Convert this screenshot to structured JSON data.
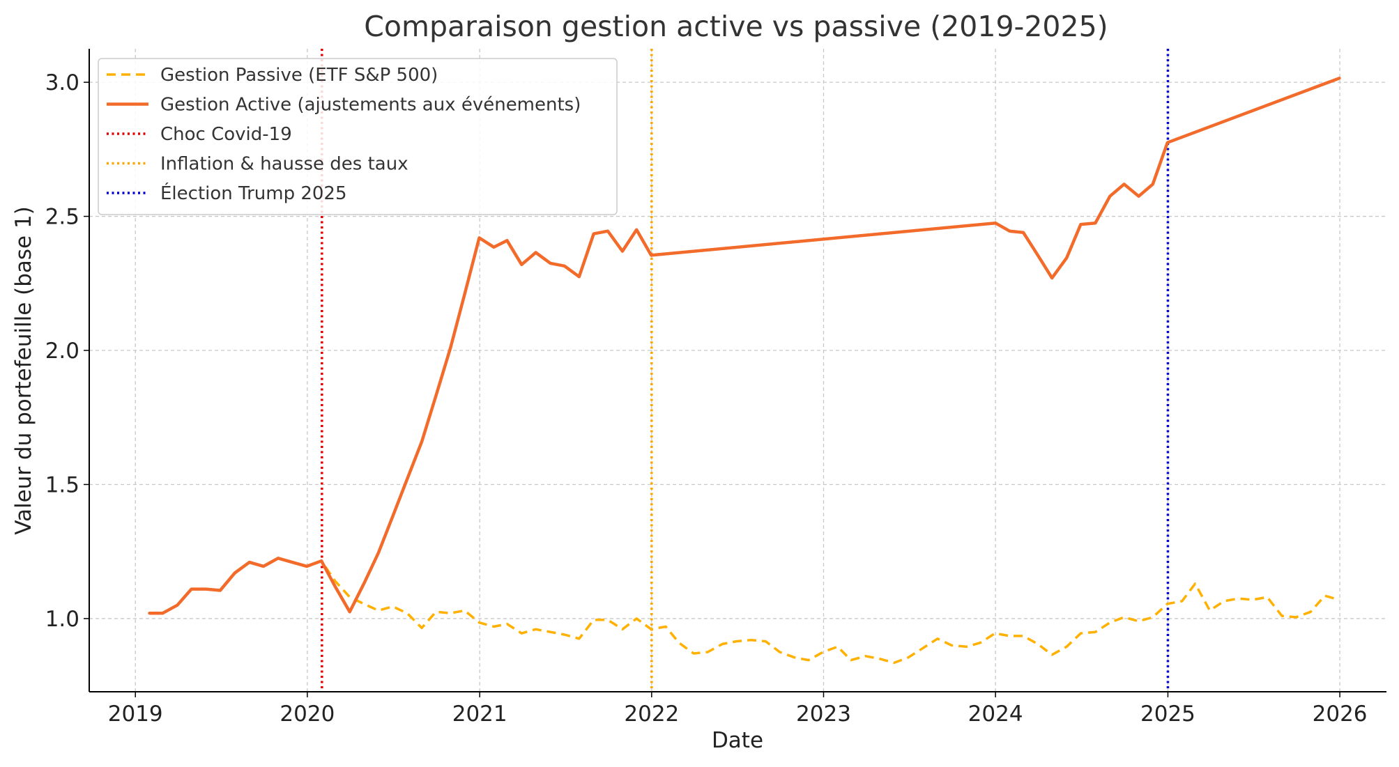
{
  "chart_data": {
    "type": "line",
    "title": "Comparaison gestion active vs passive (2019-2025)",
    "xlabel": "Date",
    "ylabel": "Valeur du portefeuille (base 1)",
    "xlim": [
      "2018-09-25",
      "2026-04-10"
    ],
    "ylim": [
      0.727,
      3.125
    ],
    "x_ticks": [
      "2019",
      "2020",
      "2021",
      "2022",
      "2023",
      "2024",
      "2025",
      "2026"
    ],
    "y_ticks": [
      "1.0",
      "1.5",
      "2.0",
      "2.5",
      "3.0"
    ],
    "grid": true,
    "legend_position": "top-left",
    "series": [
      {
        "name": "Gestion Passive (ETF S&P 500)",
        "style": "dashed",
        "color": "#FFB000",
        "points": [
          [
            "2019-01-31",
            1.02
          ],
          [
            "2019-02-28",
            1.02
          ],
          [
            "2019-03-31",
            1.05
          ],
          [
            "2019-04-30",
            1.11
          ],
          [
            "2019-05-31",
            1.11
          ],
          [
            "2019-06-30",
            1.105
          ],
          [
            "2019-07-31",
            1.17
          ],
          [
            "2019-08-31",
            1.21
          ],
          [
            "2019-09-30",
            1.195
          ],
          [
            "2019-10-31",
            1.225
          ],
          [
            "2019-11-30",
            1.21
          ],
          [
            "2019-12-31",
            1.195
          ],
          [
            "2020-01-31",
            1.215
          ],
          [
            "2020-02-29",
            1.14
          ],
          [
            "2020-03-31",
            1.08
          ],
          [
            "2020-04-30",
            1.055
          ],
          [
            "2020-05-31",
            1.03
          ],
          [
            "2020-06-30",
            1.045
          ],
          [
            "2020-07-31",
            1.02
          ],
          [
            "2020-08-31",
            0.965
          ],
          [
            "2020-09-30",
            1.025
          ],
          [
            "2020-10-31",
            1.02
          ],
          [
            "2020-11-30",
            1.03
          ],
          [
            "2020-12-31",
            0.985
          ],
          [
            "2021-01-31",
            0.97
          ],
          [
            "2021-02-28",
            0.98
          ],
          [
            "2021-03-31",
            0.945
          ],
          [
            "2021-04-30",
            0.96
          ],
          [
            "2021-05-31",
            0.95
          ],
          [
            "2021-06-30",
            0.94
          ],
          [
            "2021-07-31",
            0.925
          ],
          [
            "2021-08-31",
            0.995
          ],
          [
            "2021-09-30",
            0.995
          ],
          [
            "2021-10-31",
            0.96
          ],
          [
            "2021-11-30",
            1.0
          ],
          [
            "2021-12-31",
            0.96
          ],
          [
            "2022-01-31",
            0.97
          ],
          [
            "2022-02-28",
            0.91
          ],
          [
            "2022-03-31",
            0.87
          ],
          [
            "2022-04-30",
            0.875
          ],
          [
            "2022-05-31",
            0.905
          ],
          [
            "2022-06-30",
            0.915
          ],
          [
            "2022-07-31",
            0.92
          ],
          [
            "2022-08-31",
            0.915
          ],
          [
            "2022-09-30",
            0.875
          ],
          [
            "2022-10-31",
            0.855
          ],
          [
            "2022-11-30",
            0.845
          ],
          [
            "2022-12-31",
            0.875
          ],
          [
            "2023-01-31",
            0.895
          ],
          [
            "2023-02-28",
            0.845
          ],
          [
            "2023-03-31",
            0.86
          ],
          [
            "2023-04-30",
            0.85
          ],
          [
            "2023-05-31",
            0.835
          ],
          [
            "2023-06-30",
            0.855
          ],
          [
            "2023-07-31",
            0.89
          ],
          [
            "2023-08-31",
            0.925
          ],
          [
            "2023-09-30",
            0.9
          ],
          [
            "2023-10-31",
            0.895
          ],
          [
            "2023-11-30",
            0.91
          ],
          [
            "2023-12-31",
            0.945
          ],
          [
            "2024-01-31",
            0.935
          ],
          [
            "2024-02-29",
            0.935
          ],
          [
            "2024-03-31",
            0.905
          ],
          [
            "2024-04-30",
            0.865
          ],
          [
            "2024-05-31",
            0.895
          ],
          [
            "2024-06-30",
            0.945
          ],
          [
            "2024-07-31",
            0.95
          ],
          [
            "2024-08-31",
            0.985
          ],
          [
            "2024-09-30",
            1.005
          ],
          [
            "2024-10-31",
            0.99
          ],
          [
            "2024-11-30",
            1.005
          ],
          [
            "2024-12-31",
            1.055
          ],
          [
            "2025-01-31",
            1.065
          ],
          [
            "2025-02-28",
            1.13
          ],
          [
            "2025-03-31",
            1.03
          ],
          [
            "2025-04-30",
            1.065
          ],
          [
            "2025-05-31",
            1.075
          ],
          [
            "2025-06-30",
            1.07
          ],
          [
            "2025-07-31",
            1.08
          ],
          [
            "2025-08-31",
            1.01
          ],
          [
            "2025-09-30",
            1.005
          ],
          [
            "2025-10-31",
            1.025
          ],
          [
            "2025-11-30",
            1.085
          ],
          [
            "2025-12-31",
            1.07
          ]
        ]
      },
      {
        "name": "Gestion Active (ajustements aux événements)",
        "style": "solid",
        "color": "#F26B2A",
        "points": [
          [
            "2019-01-31",
            1.02
          ],
          [
            "2019-02-28",
            1.02
          ],
          [
            "2019-03-31",
            1.05
          ],
          [
            "2019-04-30",
            1.11
          ],
          [
            "2019-05-31",
            1.11
          ],
          [
            "2019-06-30",
            1.105
          ],
          [
            "2019-07-31",
            1.17
          ],
          [
            "2019-08-31",
            1.21
          ],
          [
            "2019-09-30",
            1.195
          ],
          [
            "2019-10-31",
            1.225
          ],
          [
            "2019-11-30",
            1.21
          ],
          [
            "2019-12-31",
            1.195
          ],
          [
            "2020-01-31",
            1.215
          ],
          [
            "2020-02-29",
            1.12
          ],
          [
            "2020-03-31",
            1.025
          ],
          [
            "2020-04-30",
            1.13
          ],
          [
            "2020-05-31",
            1.245
          ],
          [
            "2020-06-30",
            1.38
          ],
          [
            "2020-07-31",
            1.52
          ],
          [
            "2020-08-31",
            1.66
          ],
          [
            "2020-09-30",
            1.83
          ],
          [
            "2020-10-31",
            2.01
          ],
          [
            "2020-11-30",
            2.21
          ],
          [
            "2020-12-31",
            2.42
          ],
          [
            "2021-01-31",
            2.385
          ],
          [
            "2021-02-28",
            2.41
          ],
          [
            "2021-03-31",
            2.32
          ],
          [
            "2021-04-30",
            2.365
          ],
          [
            "2021-05-31",
            2.325
          ],
          [
            "2021-06-30",
            2.315
          ],
          [
            "2021-07-31",
            2.275
          ],
          [
            "2021-08-31",
            2.435
          ],
          [
            "2021-09-30",
            2.445
          ],
          [
            "2021-10-31",
            2.37
          ],
          [
            "2021-11-30",
            2.45
          ],
          [
            "2021-12-31",
            2.355
          ],
          [
            "2024-01-01",
            2.475
          ],
          [
            "2024-01-31",
            2.445
          ],
          [
            "2024-02-29",
            2.44
          ],
          [
            "2024-03-31",
            2.355
          ],
          [
            "2024-04-30",
            2.27
          ],
          [
            "2024-05-31",
            2.345
          ],
          [
            "2024-06-30",
            2.47
          ],
          [
            "2024-07-31",
            2.475
          ],
          [
            "2024-08-31",
            2.575
          ],
          [
            "2024-09-30",
            2.62
          ],
          [
            "2024-10-31",
            2.575
          ],
          [
            "2024-11-30",
            2.62
          ],
          [
            "2024-12-31",
            2.775
          ],
          [
            "2025-12-31",
            3.015
          ]
        ]
      }
    ],
    "events": [
      {
        "name": "Choc Covid-19",
        "date": "2020-02-01",
        "color": "#E00000"
      },
      {
        "name": "Inflation & hausse des taux",
        "date": "2022-01-01",
        "color": "#FFA500"
      },
      {
        "name": "Élection Trump 2025",
        "date": "2025-01-01",
        "color": "#0000D0"
      }
    ]
  }
}
